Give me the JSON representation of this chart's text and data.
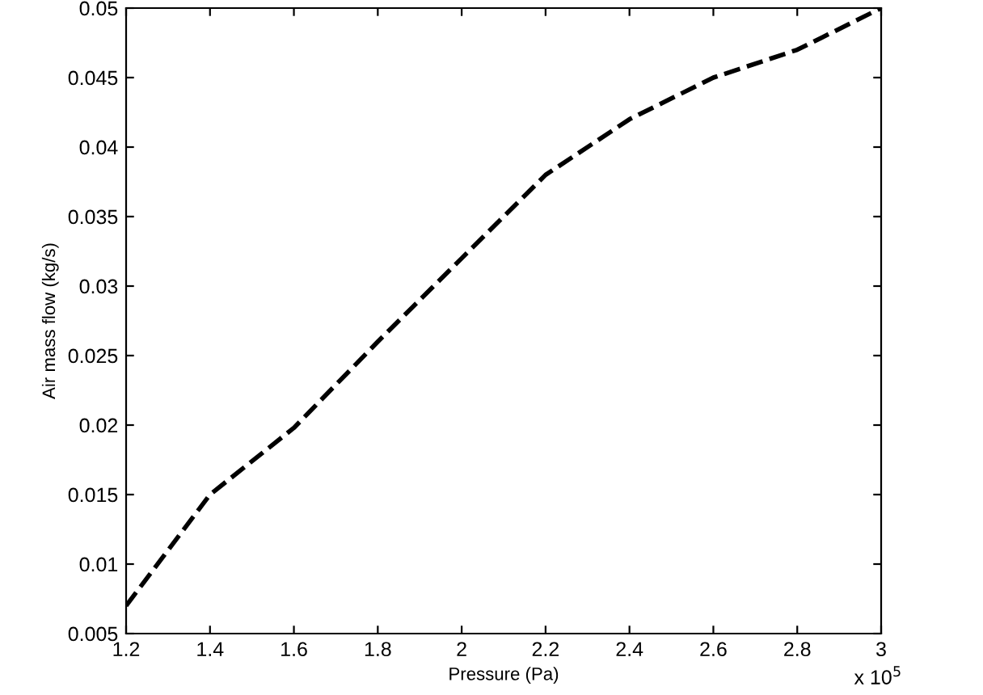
{
  "chart_data": {
    "type": "line",
    "xlabel": "Pressure (Pa)",
    "ylabel": "Air mass flow (kg/s)",
    "x": [
      1.2,
      1.4,
      1.6,
      1.8,
      2,
      2.2,
      2.4,
      2.6,
      2.8,
      3
    ],
    "series": [
      {
        "color": "#000000",
        "values": [
          0.007,
          0.015,
          0.0198,
          0.026,
          0.032,
          0.038,
          0.042,
          0.045,
          0.047,
          0.05
        ]
      }
    ],
    "xlim": [
      1.2,
      3
    ],
    "xticks": [
      1.2,
      1.4,
      1.6,
      1.8,
      2,
      2.2,
      2.4,
      2.6,
      2.8,
      3
    ],
    "ylim": [
      0.005,
      0.05
    ],
    "yticks": [
      0.005,
      0.01,
      0.015,
      0.02,
      0.025,
      0.03,
      0.035,
      0.04,
      0.045,
      0.05
    ],
    "annotations": [
      "x 10$^{5}$"
    ],
    "grid": false,
    "legend": false,
    "marker": "none",
    "line_style": "dashed"
  }
}
